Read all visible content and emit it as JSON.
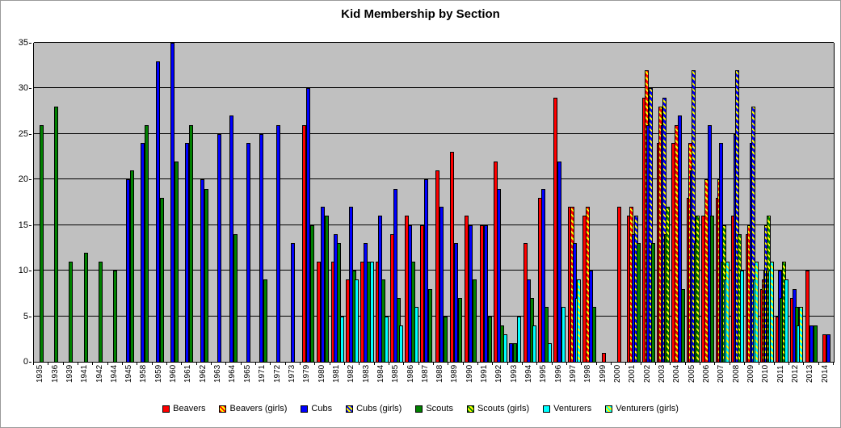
{
  "title": "Kid Membership by Section",
  "colors": {
    "beavers": "#FF0000",
    "cubs": "#0000FF",
    "scouts": "#008000",
    "venturers": "#00FFFF",
    "girls_stripe": "#FFFF00",
    "plot_background": "#C0C0C0",
    "gridline": "#000000"
  },
  "chart_data": {
    "type": "bar",
    "title": "Kid Membership by Section",
    "xlabel": "",
    "ylabel": "",
    "ylim": [
      0,
      35
    ],
    "y_tick_step": 5,
    "grid": true,
    "legend_position": "bottom",
    "categories": [
      "1935",
      "1936",
      "1939",
      "1941",
      "1942",
      "1944",
      "1945",
      "1958",
      "1959",
      "1960",
      "1961",
      "1962",
      "1963",
      "1964",
      "1965",
      "1971",
      "1972",
      "1973",
      "1979",
      "1980",
      "1981",
      "1982",
      "1983",
      "1984",
      "1985",
      "1986",
      "1987",
      "1988",
      "1989",
      "1990",
      "1991",
      "1992",
      "1993",
      "1994",
      "1995",
      "1996",
      "1997",
      "1998",
      "1999",
      "2000",
      "2001",
      "2002",
      "2003",
      "2004",
      "2005",
      "2006",
      "2007",
      "2008",
      "2009",
      "2010",
      "2011",
      "2012",
      "2013",
      "2014"
    ],
    "series": [
      {
        "name": "Beavers",
        "color": "#FF0000",
        "hatch": false,
        "values": [
          null,
          null,
          null,
          null,
          null,
          null,
          null,
          null,
          null,
          null,
          null,
          null,
          null,
          null,
          null,
          null,
          null,
          null,
          26,
          11,
          11,
          9,
          11,
          11,
          14,
          16,
          15,
          21,
          23,
          16,
          15,
          22,
          null,
          13,
          18,
          29,
          17,
          16,
          1,
          17,
          16,
          29,
          24,
          24,
          18,
          16,
          18,
          16,
          14,
          8,
          5,
          7,
          10,
          3
        ]
      },
      {
        "name": "Beavers (girls)",
        "color": "#FF0000",
        "hatch": true,
        "values": [
          null,
          null,
          null,
          null,
          null,
          null,
          null,
          null,
          null,
          null,
          null,
          null,
          null,
          null,
          null,
          null,
          null,
          null,
          null,
          null,
          null,
          null,
          null,
          null,
          null,
          null,
          null,
          null,
          null,
          null,
          null,
          null,
          null,
          null,
          null,
          null,
          17,
          17,
          null,
          null,
          17,
          32,
          28,
          26,
          24,
          20,
          20,
          null,
          15,
          9,
          null,
          null,
          null,
          null
        ]
      },
      {
        "name": "Cubs",
        "color": "#0000FF",
        "hatch": false,
        "values": [
          null,
          null,
          null,
          null,
          null,
          null,
          20,
          24,
          33,
          35,
          24,
          20,
          25,
          27,
          24,
          25,
          26,
          13,
          30,
          17,
          14,
          17,
          13,
          16,
          19,
          15,
          20,
          17,
          13,
          15,
          15,
          19,
          2,
          9,
          19,
          22,
          13,
          10,
          null,
          null,
          14,
          26,
          26,
          27,
          21,
          26,
          24,
          25,
          24,
          10,
          10,
          8,
          4,
          3
        ]
      },
      {
        "name": "Cubs (girls)",
        "color": "#0000FF",
        "hatch": true,
        "values": [
          null,
          null,
          null,
          null,
          null,
          null,
          null,
          null,
          null,
          null,
          null,
          null,
          null,
          null,
          null,
          null,
          null,
          null,
          null,
          null,
          null,
          null,
          null,
          null,
          null,
          null,
          null,
          null,
          null,
          null,
          null,
          null,
          null,
          null,
          null,
          null,
          null,
          null,
          null,
          null,
          16,
          30,
          29,
          null,
          32,
          null,
          null,
          32,
          28,
          15,
          null,
          null,
          null,
          null
        ]
      },
      {
        "name": "Scouts",
        "color": "#008000",
        "hatch": false,
        "values": [
          26,
          28,
          11,
          12,
          11,
          10,
          21,
          26,
          18,
          22,
          26,
          19,
          null,
          14,
          null,
          9,
          null,
          null,
          15,
          16,
          13,
          10,
          11,
          9,
          7,
          11,
          8,
          5,
          7,
          9,
          5,
          4,
          2,
          7,
          6,
          null,
          null,
          6,
          null,
          null,
          13,
          13,
          14,
          8,
          13,
          16,
          11,
          null,
          null,
          10,
          7,
          6,
          4,
          null
        ]
      },
      {
        "name": "Scouts (girls)",
        "color": "#008000",
        "hatch": true,
        "values": [
          null,
          null,
          null,
          null,
          null,
          null,
          null,
          null,
          null,
          null,
          null,
          null,
          null,
          null,
          null,
          null,
          null,
          null,
          null,
          null,
          null,
          null,
          null,
          null,
          null,
          null,
          null,
          null,
          null,
          null,
          null,
          null,
          null,
          null,
          null,
          null,
          null,
          null,
          null,
          null,
          null,
          null,
          17,
          null,
          16,
          null,
          15,
          14,
          null,
          16,
          11,
          null,
          null,
          null
        ]
      },
      {
        "name": "Venturers",
        "color": "#00FFFF",
        "hatch": false,
        "values": [
          null,
          null,
          null,
          null,
          null,
          null,
          null,
          null,
          null,
          null,
          null,
          null,
          null,
          null,
          null,
          null,
          null,
          null,
          null,
          null,
          5,
          9,
          11,
          5,
          4,
          6,
          null,
          null,
          null,
          null,
          null,
          3,
          5,
          4,
          2,
          6,
          7,
          null,
          null,
          null,
          null,
          null,
          null,
          null,
          null,
          null,
          9,
          10,
          9,
          10,
          9,
          4,
          null,
          null
        ]
      },
      {
        "name": "Venturers (girls)",
        "color": "#00FFFF",
        "hatch": true,
        "values": [
          null,
          null,
          null,
          null,
          null,
          null,
          null,
          null,
          null,
          null,
          null,
          null,
          null,
          null,
          null,
          null,
          null,
          null,
          null,
          null,
          null,
          null,
          null,
          null,
          null,
          null,
          null,
          null,
          null,
          null,
          null,
          null,
          null,
          null,
          null,
          null,
          9,
          null,
          null,
          null,
          null,
          null,
          null,
          null,
          null,
          null,
          11,
          null,
          11,
          11,
          null,
          6,
          null,
          null
        ]
      }
    ]
  }
}
